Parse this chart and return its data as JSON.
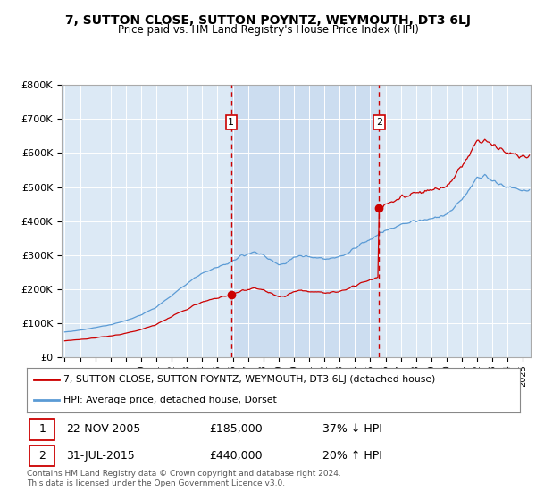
{
  "title": "7, SUTTON CLOSE, SUTTON POYNTZ, WEYMOUTH, DT3 6LJ",
  "subtitle": "Price paid vs. HM Land Registry's House Price Index (HPI)",
  "background_color": "#ffffff",
  "plot_bg_color": "#dce9f5",
  "ylim": [
    0,
    800000
  ],
  "yticks": [
    0,
    100000,
    200000,
    300000,
    400000,
    500000,
    600000,
    700000,
    800000
  ],
  "ytick_labels": [
    "£0",
    "£100K",
    "£200K",
    "£300K",
    "£400K",
    "£500K",
    "£600K",
    "£700K",
    "£800K"
  ],
  "legend_entry1": "7, SUTTON CLOSE, SUTTON POYNTZ, WEYMOUTH, DT3 6LJ (detached house)",
  "legend_entry2": "HPI: Average price, detached house, Dorset",
  "sale1_date": "22-NOV-2005",
  "sale1_price": 185000,
  "sale1_hpi": "37% ↓ HPI",
  "sale2_date": "31-JUL-2015",
  "sale2_price": 440000,
  "sale2_hpi": "20% ↑ HPI",
  "footnote": "Contains HM Land Registry data © Crown copyright and database right 2024.\nThis data is licensed under the Open Government Licence v3.0.",
  "red_color": "#cc0000",
  "blue_color": "#5b9bd5",
  "shade_color": "#ccddf0",
  "sale1_x": 2005.9,
  "sale2_x": 2015.58,
  "xlim_start": 1994.8,
  "xlim_end": 2025.5
}
